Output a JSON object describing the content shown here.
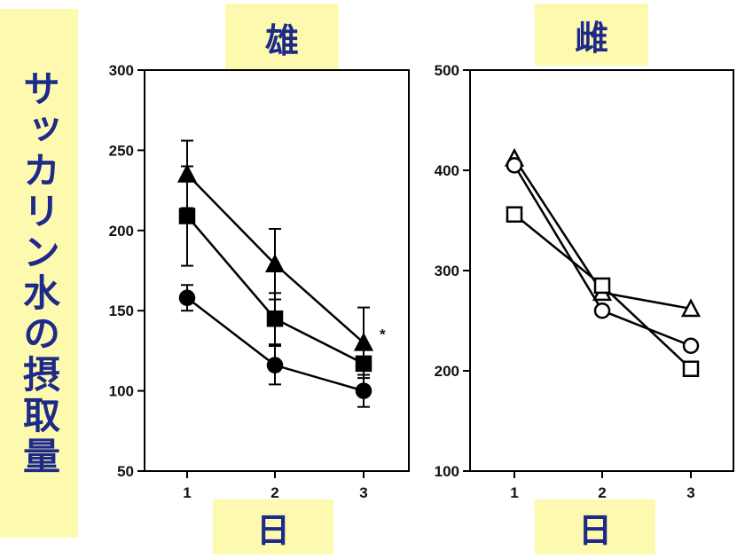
{
  "ylabel": "サッカリン水の摂取量",
  "chart_data": [
    {
      "type": "line",
      "title": "雄",
      "xlabel": "日",
      "x": [
        1,
        2,
        3
      ],
      "ylim": [
        50,
        300
      ],
      "yticks": [
        50,
        100,
        150,
        200,
        250,
        300
      ],
      "series": [
        {
          "marker": "filled-triangle",
          "values": [
            235,
            179,
            130
          ],
          "error": [
            21,
            22,
            22
          ]
        },
        {
          "marker": "filled-square",
          "values": [
            209,
            145,
            117
          ],
          "error": [
            31,
            16,
            0
          ]
        },
        {
          "marker": "filled-circle",
          "values": [
            158,
            116,
            100
          ],
          "error": [
            8,
            12,
            10
          ]
        }
      ],
      "annotation": "*"
    },
    {
      "type": "line",
      "title": "雌",
      "xlabel": "日",
      "x": [
        1,
        2,
        3
      ],
      "ylim": [
        100,
        500
      ],
      "yticks": [
        100,
        200,
        300,
        400,
        500
      ],
      "series": [
        {
          "marker": "open-triangle",
          "values": [
            412,
            278,
            262
          ]
        },
        {
          "marker": "open-circle",
          "values": [
            405,
            260,
            225
          ]
        },
        {
          "marker": "open-square",
          "values": [
            356,
            285,
            202
          ]
        }
      ]
    }
  ]
}
